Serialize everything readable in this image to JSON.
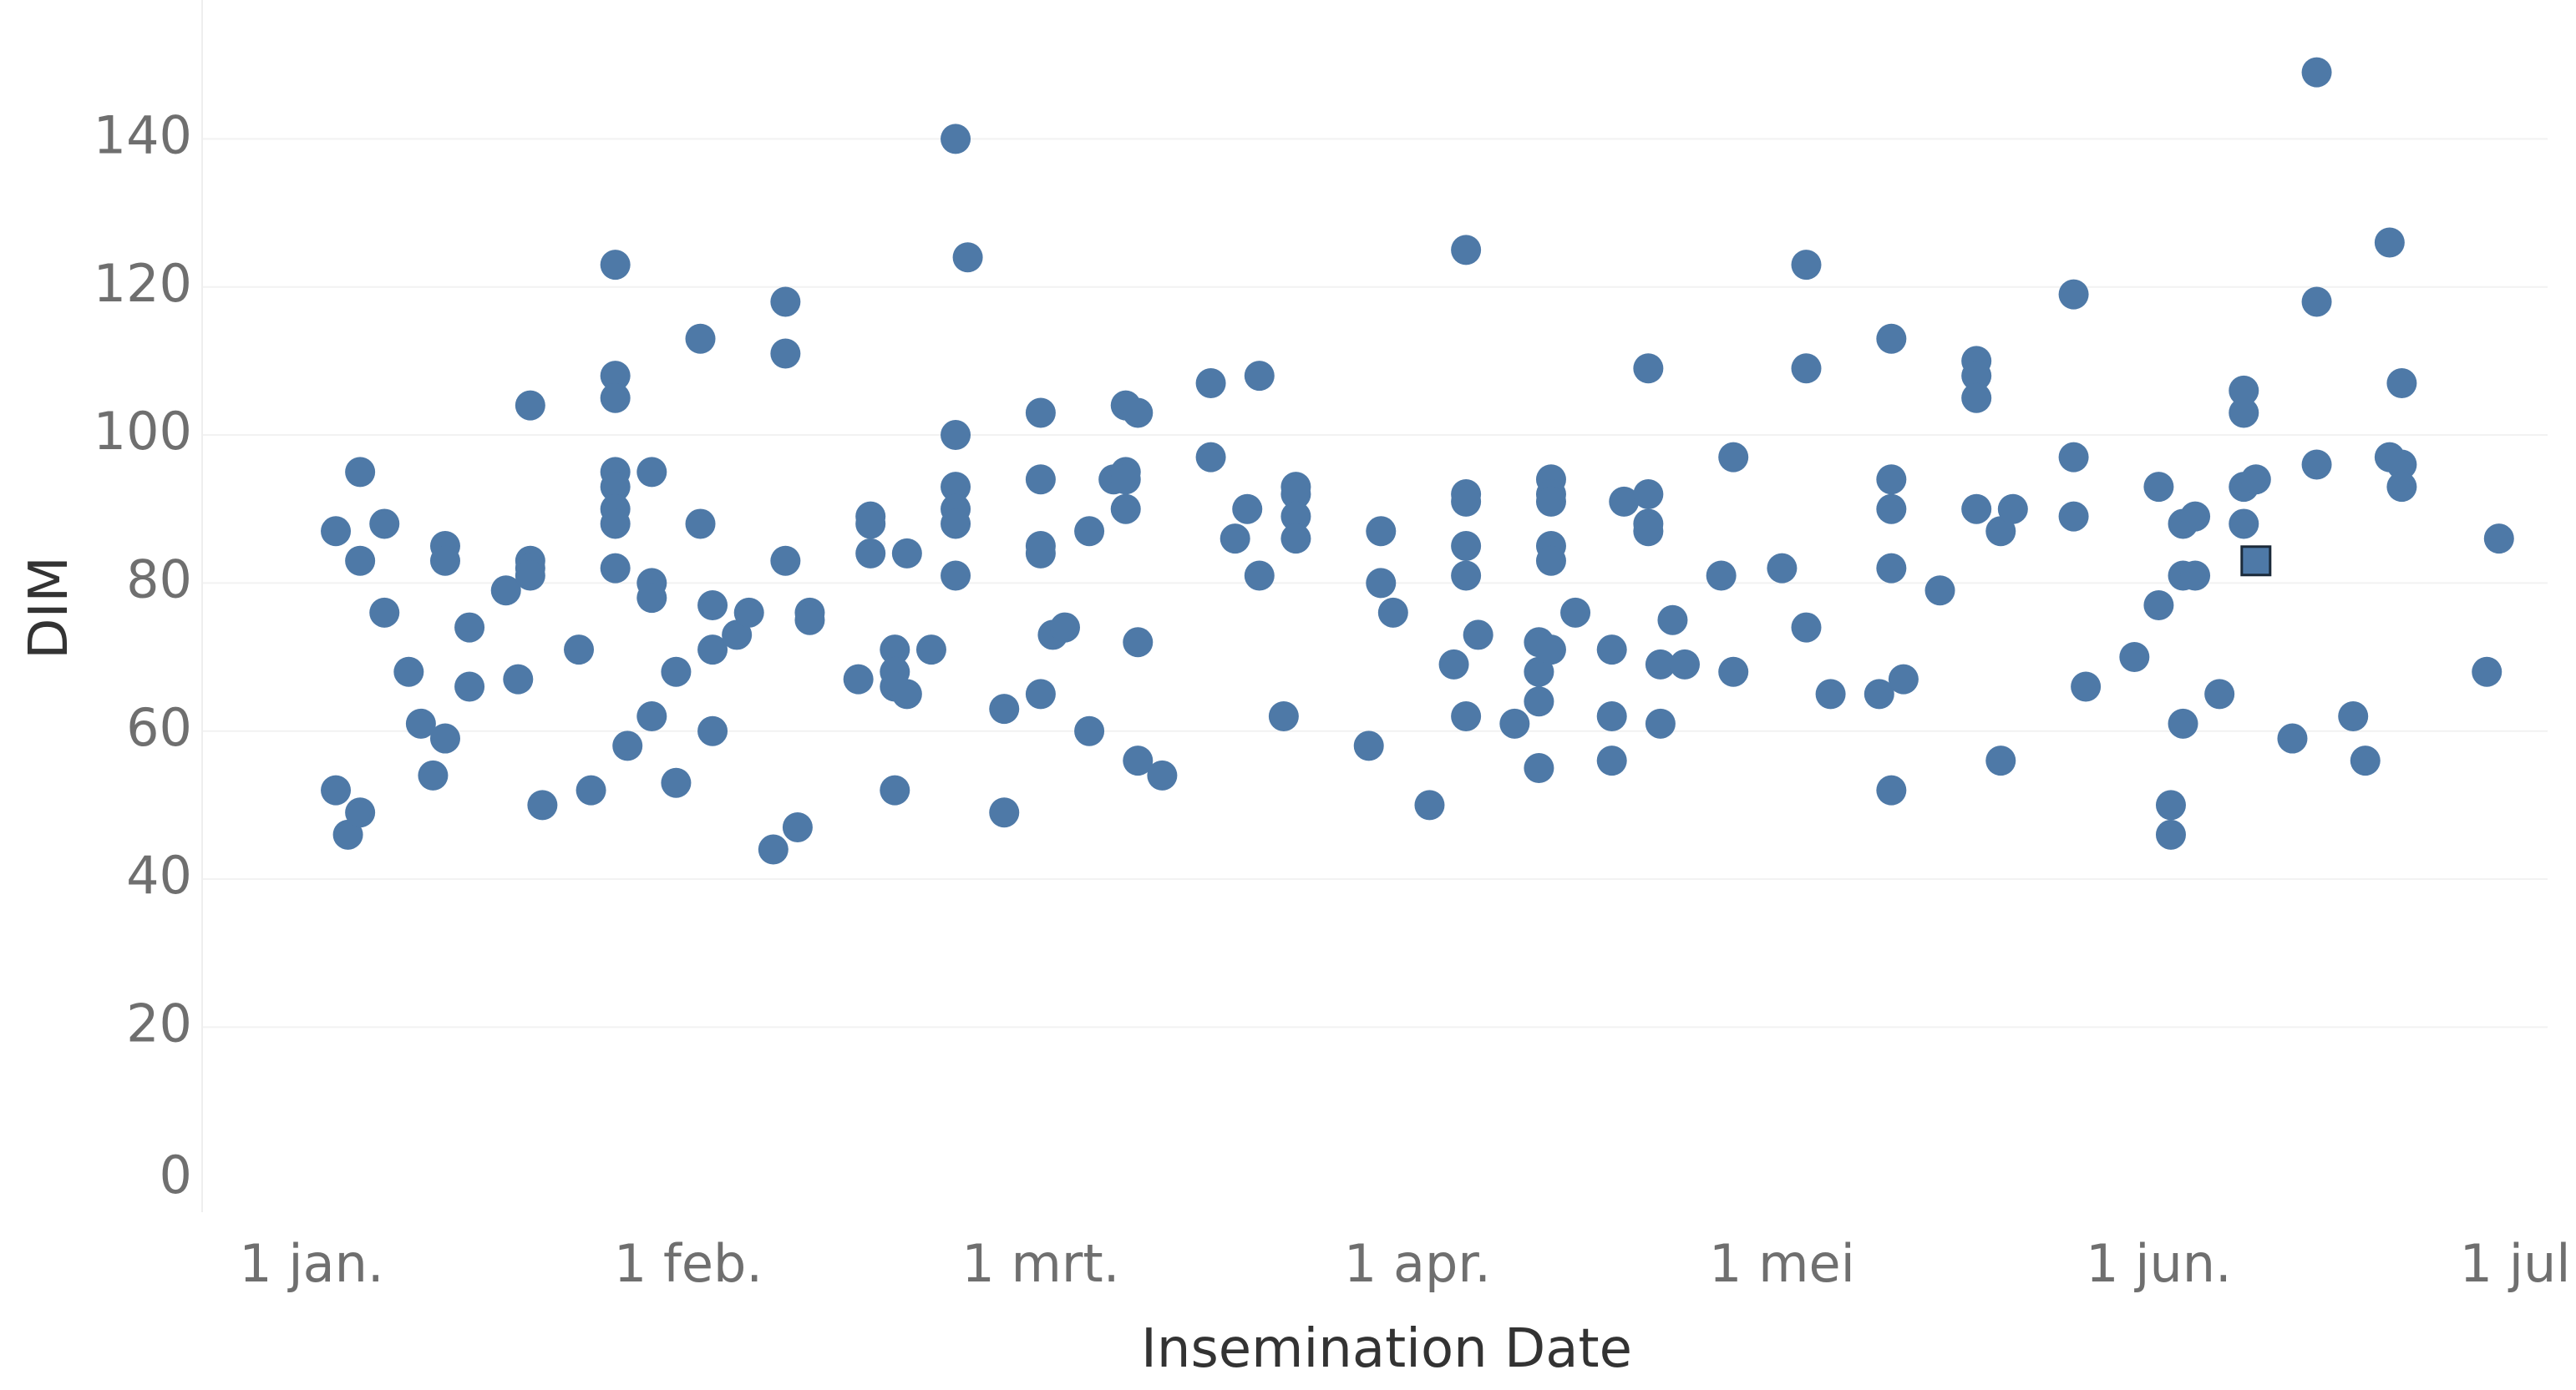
{
  "chart_data": {
    "type": "scatter",
    "xlabel": "Insemination Date",
    "ylabel": "DIM",
    "x_type": "date",
    "xlim": [
      "2023-12-23",
      "2024-07-03"
    ],
    "ylim": [
      -5,
      152
    ],
    "grid": true,
    "x_ticks": [
      {
        "date": "2024-01-01",
        "label": "1 jan."
      },
      {
        "date": "2024-02-01",
        "label": "1 feb."
      },
      {
        "date": "2024-03-01",
        "label": "1 mrt."
      },
      {
        "date": "2024-04-01",
        "label": "1 apr."
      },
      {
        "date": "2024-05-01",
        "label": "1 mei"
      },
      {
        "date": "2024-06-01",
        "label": "1 jun."
      },
      {
        "date": "2024-07-01",
        "label": "1 jul."
      }
    ],
    "y_ticks": [
      0,
      20,
      40,
      60,
      80,
      100,
      120,
      140
    ],
    "colors": {
      "point": "#4e79a7",
      "highlight_border": "#1b2a3a"
    },
    "points": [
      [
        "2024-01-03",
        87
      ],
      [
        "2024-01-03",
        52
      ],
      [
        "2024-01-04",
        46
      ],
      [
        "2024-01-05",
        49
      ],
      [
        "2024-01-05",
        95
      ],
      [
        "2024-01-05",
        83
      ],
      [
        "2024-01-07",
        88
      ],
      [
        "2024-01-07",
        76
      ],
      [
        "2024-01-09",
        68
      ],
      [
        "2024-01-10",
        61
      ],
      [
        "2024-01-11",
        54
      ],
      [
        "2024-01-12",
        85
      ],
      [
        "2024-01-12",
        83
      ],
      [
        "2024-01-12",
        59
      ],
      [
        "2024-01-14",
        74
      ],
      [
        "2024-01-14",
        66
      ],
      [
        "2024-01-17",
        79
      ],
      [
        "2024-01-18",
        67
      ],
      [
        "2024-01-19",
        104
      ],
      [
        "2024-01-19",
        83
      ],
      [
        "2024-01-19",
        82
      ],
      [
        "2024-01-19",
        81
      ],
      [
        "2024-01-20",
        50
      ],
      [
        "2024-01-23",
        71
      ],
      [
        "2024-01-24",
        52
      ],
      [
        "2024-01-26",
        123
      ],
      [
        "2024-01-26",
        108
      ],
      [
        "2024-01-26",
        105
      ],
      [
        "2024-01-26",
        95
      ],
      [
        "2024-01-26",
        93
      ],
      [
        "2024-01-26",
        90
      ],
      [
        "2024-01-26",
        88
      ],
      [
        "2024-01-26",
        82
      ],
      [
        "2024-01-27",
        58
      ],
      [
        "2024-01-29",
        95
      ],
      [
        "2024-01-29",
        80
      ],
      [
        "2024-01-29",
        78
      ],
      [
        "2024-01-29",
        62
      ],
      [
        "2024-01-31",
        68
      ],
      [
        "2024-01-31",
        53
      ],
      [
        "2024-02-02",
        113
      ],
      [
        "2024-02-02",
        88
      ],
      [
        "2024-02-03",
        77
      ],
      [
        "2024-02-03",
        71
      ],
      [
        "2024-02-03",
        60
      ],
      [
        "2024-02-05",
        73
      ],
      [
        "2024-02-06",
        76
      ],
      [
        "2024-02-08",
        44
      ],
      [
        "2024-02-09",
        118
      ],
      [
        "2024-02-09",
        111
      ],
      [
        "2024-02-09",
        83
      ],
      [
        "2024-02-10",
        47
      ],
      [
        "2024-02-11",
        76
      ],
      [
        "2024-02-11",
        75
      ],
      [
        "2024-02-15",
        67
      ],
      [
        "2024-02-16",
        89
      ],
      [
        "2024-02-16",
        88
      ],
      [
        "2024-02-16",
        84
      ],
      [
        "2024-02-18",
        71
      ],
      [
        "2024-02-18",
        68
      ],
      [
        "2024-02-18",
        66
      ],
      [
        "2024-02-18",
        52
      ],
      [
        "2024-02-19",
        84
      ],
      [
        "2024-02-19",
        65
      ],
      [
        "2024-02-21",
        71
      ],
      [
        "2024-02-23",
        140
      ],
      [
        "2024-02-23",
        100
      ],
      [
        "2024-02-23",
        93
      ],
      [
        "2024-02-23",
        90
      ],
      [
        "2024-02-23",
        88
      ],
      [
        "2024-02-23",
        81
      ],
      [
        "2024-02-24",
        124
      ],
      [
        "2024-02-27",
        63
      ],
      [
        "2024-02-27",
        49
      ],
      [
        "2024-03-01",
        103
      ],
      [
        "2024-03-01",
        94
      ],
      [
        "2024-03-01",
        85
      ],
      [
        "2024-03-01",
        84
      ],
      [
        "2024-03-01",
        65
      ],
      [
        "2024-03-02",
        73
      ],
      [
        "2024-03-03",
        74
      ],
      [
        "2024-03-05",
        87
      ],
      [
        "2024-03-05",
        60
      ],
      [
        "2024-03-07",
        94
      ],
      [
        "2024-03-08",
        104
      ],
      [
        "2024-03-08",
        95
      ],
      [
        "2024-03-08",
        94
      ],
      [
        "2024-03-08",
        90
      ],
      [
        "2024-03-09",
        103
      ],
      [
        "2024-03-09",
        72
      ],
      [
        "2024-03-09",
        56
      ],
      [
        "2024-03-11",
        54
      ],
      [
        "2024-03-15",
        107
      ],
      [
        "2024-03-15",
        97
      ],
      [
        "2024-03-17",
        86
      ],
      [
        "2024-03-18",
        90
      ],
      [
        "2024-03-19",
        108
      ],
      [
        "2024-03-19",
        81
      ],
      [
        "2024-03-21",
        62
      ],
      [
        "2024-03-22",
        93
      ],
      [
        "2024-03-22",
        92
      ],
      [
        "2024-03-22",
        89
      ],
      [
        "2024-03-22",
        86
      ],
      [
        "2024-03-28",
        58
      ],
      [
        "2024-03-29",
        87
      ],
      [
        "2024-03-29",
        80
      ],
      [
        "2024-03-30",
        76
      ],
      [
        "2024-04-02",
        50
      ],
      [
        "2024-04-04",
        69
      ],
      [
        "2024-04-05",
        125
      ],
      [
        "2024-04-05",
        92
      ],
      [
        "2024-04-05",
        91
      ],
      [
        "2024-04-05",
        85
      ],
      [
        "2024-04-05",
        81
      ],
      [
        "2024-04-05",
        62
      ],
      [
        "2024-04-06",
        73
      ],
      [
        "2024-04-09",
        61
      ],
      [
        "2024-04-11",
        72
      ],
      [
        "2024-04-11",
        68
      ],
      [
        "2024-04-11",
        64
      ],
      [
        "2024-04-11",
        55
      ],
      [
        "2024-04-12",
        94
      ],
      [
        "2024-04-12",
        92
      ],
      [
        "2024-04-12",
        91
      ],
      [
        "2024-04-12",
        85
      ],
      [
        "2024-04-12",
        83
      ],
      [
        "2024-04-12",
        71
      ],
      [
        "2024-04-14",
        76
      ],
      [
        "2024-04-17",
        71
      ],
      [
        "2024-04-17",
        62
      ],
      [
        "2024-04-17",
        56
      ],
      [
        "2024-04-18",
        91
      ],
      [
        "2024-04-20",
        109
      ],
      [
        "2024-04-20",
        92
      ],
      [
        "2024-04-20",
        88
      ],
      [
        "2024-04-20",
        87
      ],
      [
        "2024-04-21",
        69
      ],
      [
        "2024-04-21",
        61
      ],
      [
        "2024-04-22",
        75
      ],
      [
        "2024-04-23",
        69
      ],
      [
        "2024-04-26",
        81
      ],
      [
        "2024-04-27",
        97
      ],
      [
        "2024-04-27",
        68
      ],
      [
        "2024-05-01",
        82
      ],
      [
        "2024-05-03",
        123
      ],
      [
        "2024-05-03",
        109
      ],
      [
        "2024-05-03",
        74
      ],
      [
        "2024-05-05",
        65
      ],
      [
        "2024-05-09",
        65
      ],
      [
        "2024-05-10",
        113
      ],
      [
        "2024-05-10",
        94
      ],
      [
        "2024-05-10",
        90
      ],
      [
        "2024-05-10",
        82
      ],
      [
        "2024-05-10",
        52
      ],
      [
        "2024-05-11",
        67
      ],
      [
        "2024-05-14",
        79
      ],
      [
        "2024-05-17",
        110
      ],
      [
        "2024-05-17",
        108
      ],
      [
        "2024-05-17",
        105
      ],
      [
        "2024-05-17",
        90
      ],
      [
        "2024-05-19",
        87
      ],
      [
        "2024-05-19",
        56
      ],
      [
        "2024-05-20",
        90
      ],
      [
        "2024-05-25",
        119
      ],
      [
        "2024-05-25",
        97
      ],
      [
        "2024-05-25",
        89
      ],
      [
        "2024-05-26",
        66
      ],
      [
        "2024-05-30",
        70
      ],
      [
        "2024-06-01",
        93
      ],
      [
        "2024-06-01",
        77
      ],
      [
        "2024-06-02",
        50
      ],
      [
        "2024-06-02",
        46
      ],
      [
        "2024-06-03",
        88
      ],
      [
        "2024-06-03",
        81
      ],
      [
        "2024-06-03",
        61
      ],
      [
        "2024-06-04",
        89
      ],
      [
        "2024-06-04",
        81
      ],
      [
        "2024-06-06",
        65
      ],
      [
        "2024-06-08",
        106
      ],
      [
        "2024-06-08",
        103
      ],
      [
        "2024-06-08",
        93
      ],
      [
        "2024-06-08",
        88
      ],
      [
        "2024-06-09",
        94
      ],
      [
        "2024-06-12",
        59
      ],
      [
        "2024-06-14",
        149
      ],
      [
        "2024-06-14",
        118
      ],
      [
        "2024-06-14",
        96
      ],
      [
        "2024-06-17",
        62
      ],
      [
        "2024-06-18",
        56
      ],
      [
        "2024-06-20",
        126
      ],
      [
        "2024-06-20",
        97
      ],
      [
        "2024-06-21",
        107
      ],
      [
        "2024-06-21",
        96
      ],
      [
        "2024-06-21",
        93
      ],
      [
        "2024-06-28",
        68
      ],
      [
        "2024-06-29",
        86
      ]
    ],
    "highlighted_points": [
      [
        "2024-06-09",
        83
      ]
    ]
  }
}
